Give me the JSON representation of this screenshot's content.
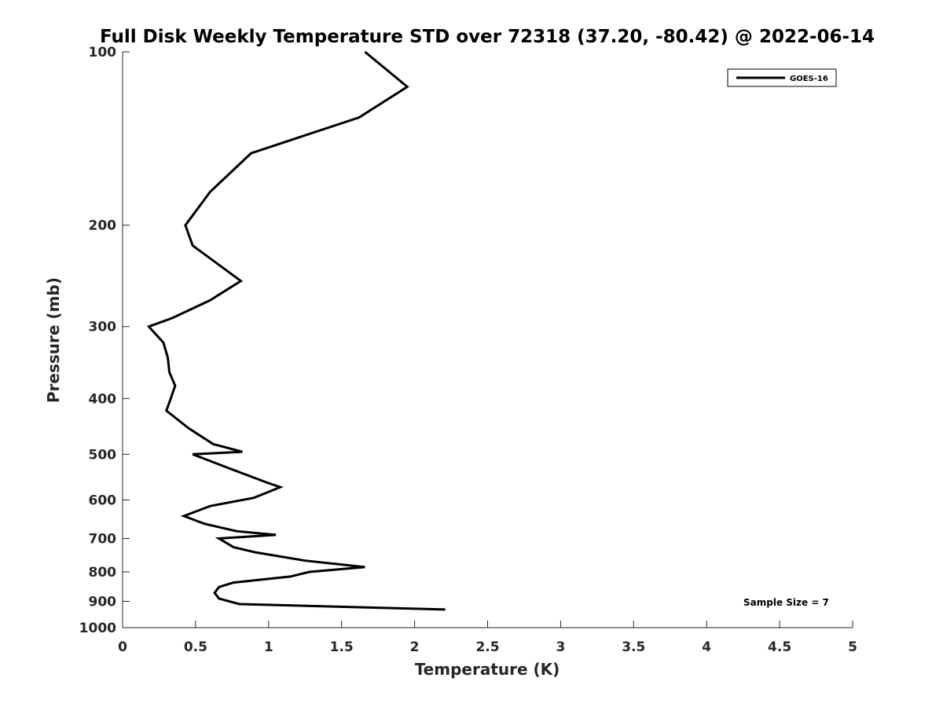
{
  "chart_data": {
    "type": "line",
    "title": "Full Disk Weekly Temperature STD over 72318 (37.20, -80.42) @ 2022-06-14",
    "xlabel": "Temperature (K)",
    "ylabel": "Pressure (mb)",
    "xlim": [
      0,
      5
    ],
    "ylim": [
      100,
      1000
    ],
    "y_scale": "log",
    "y_reversed": true,
    "x_ticks": [
      0,
      0.5,
      1,
      1.5,
      2,
      2.5,
      3,
      3.5,
      4,
      4.5,
      5
    ],
    "x_tick_labels": [
      "0",
      "0.5",
      "1",
      "1.5",
      "2",
      "2.5",
      "3",
      "3.5",
      "4",
      "4.5",
      "5"
    ],
    "y_ticks": [
      100,
      200,
      300,
      400,
      500,
      600,
      700,
      800,
      900,
      1000
    ],
    "y_tick_labels": [
      "100",
      "200",
      "300",
      "400",
      "500",
      "600",
      "700",
      "800",
      "900",
      "1000"
    ],
    "grid": false,
    "legend_position": "top-right",
    "annotation": "Sample Size = 7",
    "series": [
      {
        "name": "GOES-16",
        "color": "#000000",
        "points": [
          [
            1.66,
            100
          ],
          [
            1.95,
            115
          ],
          [
            1.62,
            130
          ],
          [
            0.88,
            150
          ],
          [
            0.6,
            175
          ],
          [
            0.43,
            200
          ],
          [
            0.48,
            217
          ],
          [
            0.81,
            250
          ],
          [
            0.6,
            270
          ],
          [
            0.34,
            290
          ],
          [
            0.18,
            300
          ],
          [
            0.28,
            320
          ],
          [
            0.31,
            340
          ],
          [
            0.32,
            360
          ],
          [
            0.36,
            380
          ],
          [
            0.33,
            400
          ],
          [
            0.3,
            420
          ],
          [
            0.45,
            450
          ],
          [
            0.62,
            480
          ],
          [
            0.82,
            495
          ],
          [
            0.48,
            500
          ],
          [
            0.74,
            530
          ],
          [
            0.99,
            560
          ],
          [
            1.08,
            570
          ],
          [
            0.9,
            595
          ],
          [
            0.6,
            615
          ],
          [
            0.42,
            640
          ],
          [
            0.56,
            660
          ],
          [
            0.78,
            680
          ],
          [
            1.05,
            690
          ],
          [
            0.66,
            700
          ],
          [
            0.76,
            725
          ],
          [
            0.91,
            740
          ],
          [
            1.25,
            765
          ],
          [
            1.66,
            785
          ],
          [
            1.28,
            800
          ],
          [
            1.15,
            815
          ],
          [
            0.76,
            835
          ],
          [
            0.66,
            850
          ],
          [
            0.63,
            870
          ],
          [
            0.66,
            890
          ],
          [
            0.8,
            910
          ],
          [
            2.21,
            930
          ]
        ]
      }
    ]
  }
}
